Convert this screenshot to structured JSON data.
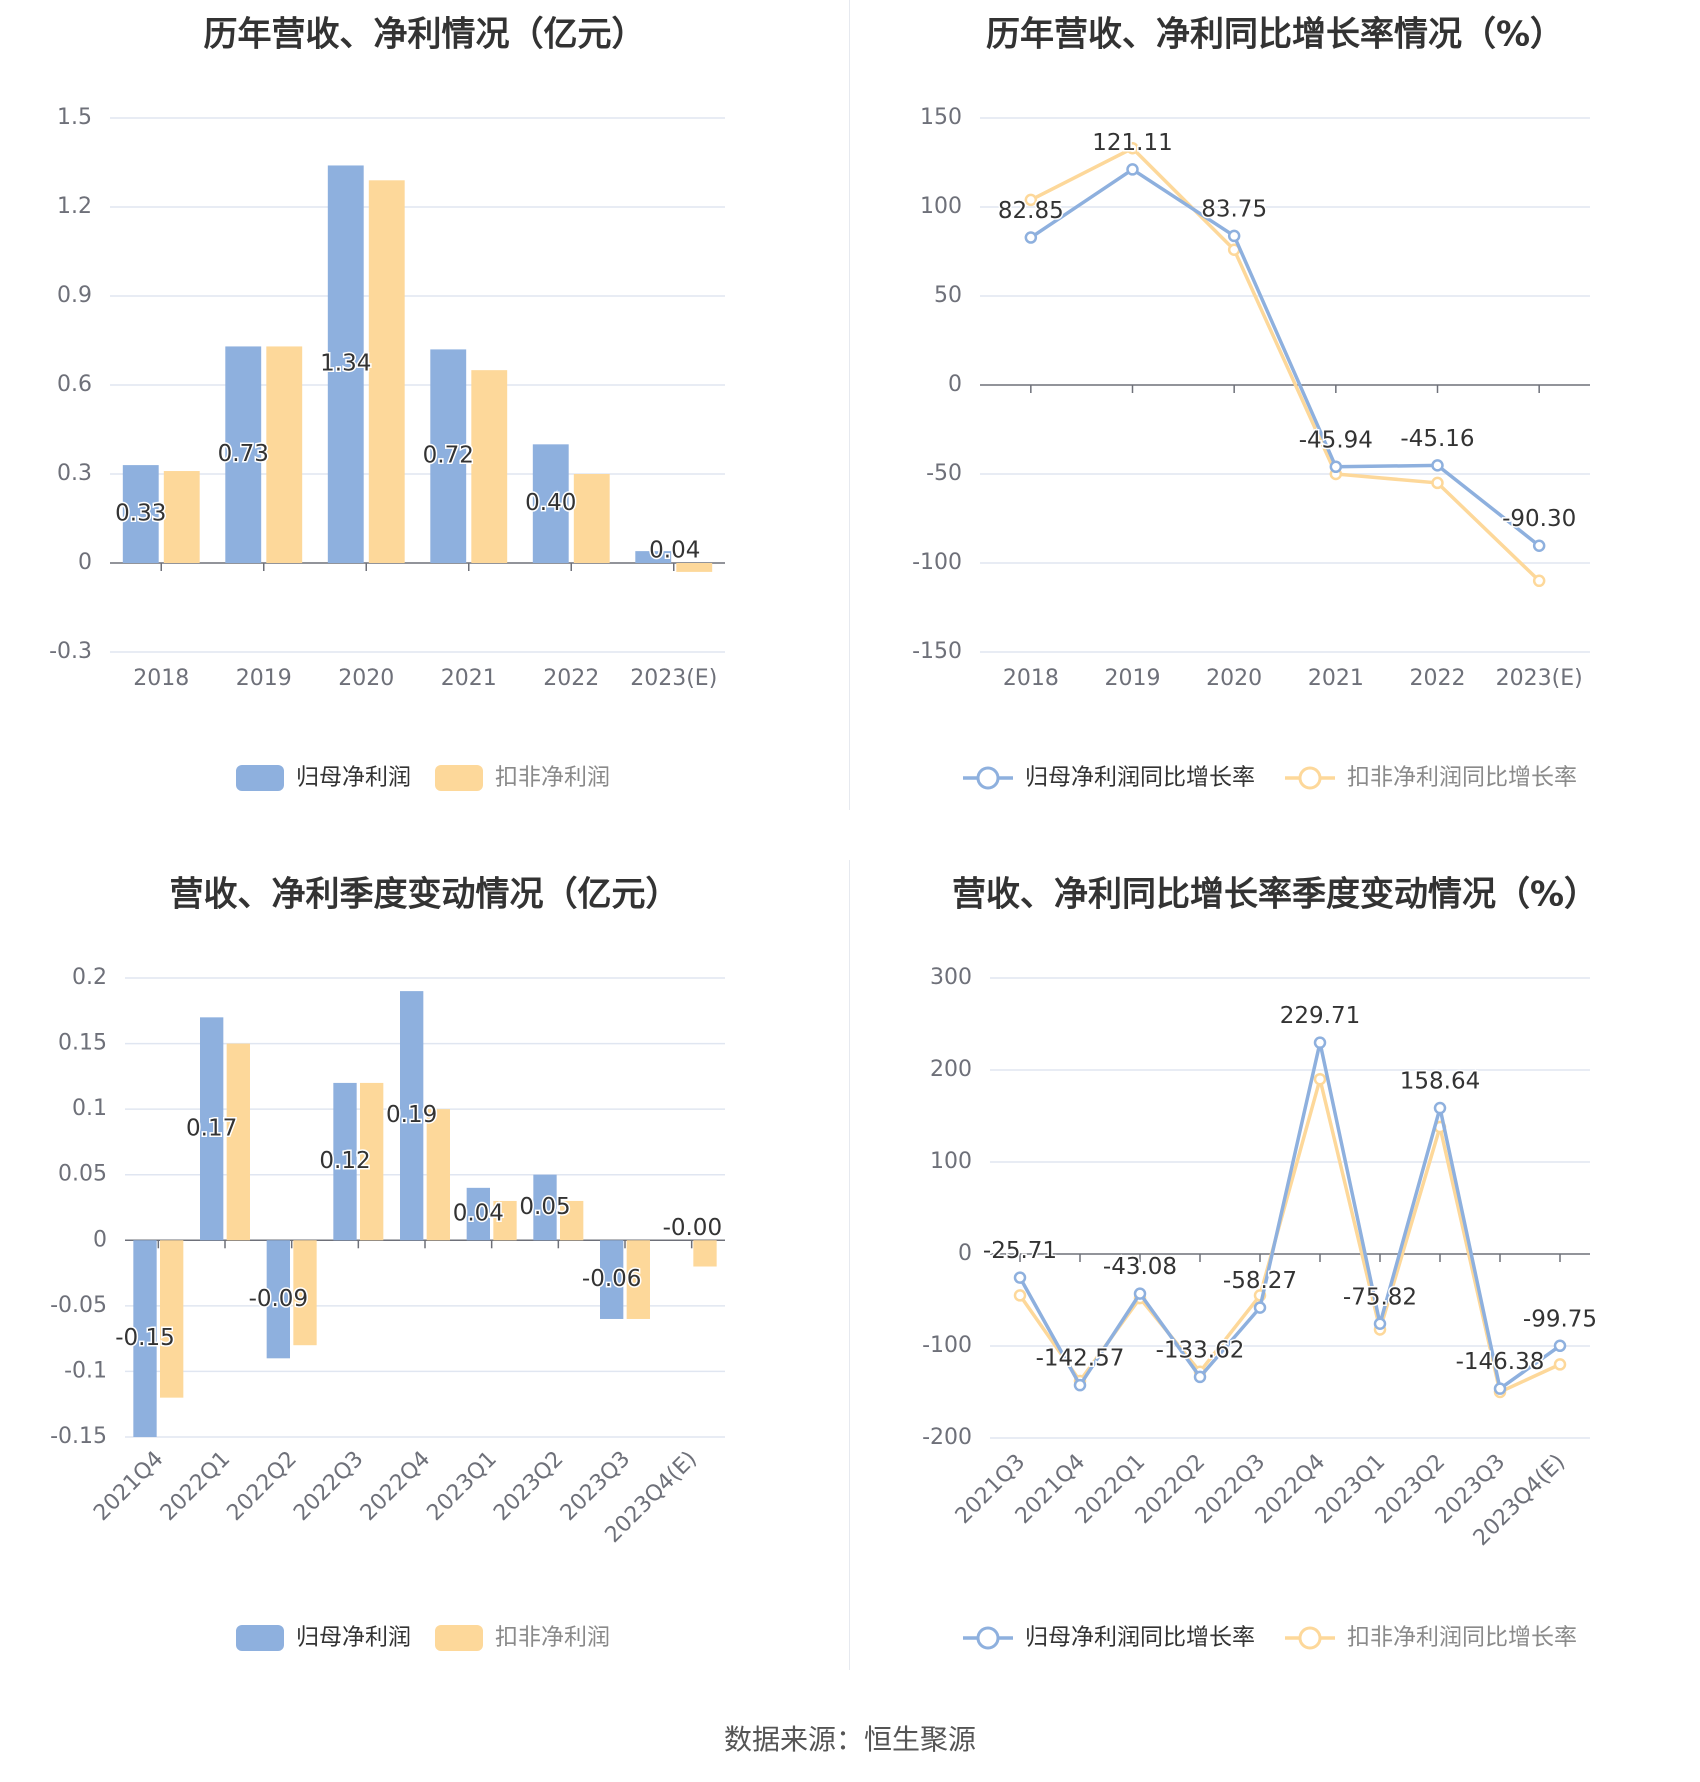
{
  "footer": "数据来源：恒生聚源",
  "colors": {
    "blue": "#8eb0de",
    "yellow": "#fdd89a",
    "grid": "#e0e6f1",
    "axis": "#6e7079"
  },
  "chart_data": [
    {
      "type": "bar",
      "title": "历年营收、净利情况（亿元）",
      "categories": [
        "2018",
        "2019",
        "2020",
        "2021",
        "2022",
        "2023(E)"
      ],
      "ylim": [
        -0.3,
        1.5
      ],
      "yticks": [
        "-0.3",
        "0",
        "0.3",
        "0.6",
        "0.9",
        "1.2",
        "1.5"
      ],
      "series": [
        {
          "name": "归母净利润",
          "values": [
            0.33,
            0.73,
            1.34,
            0.72,
            0.4,
            0.04
          ],
          "labels": [
            "0.33",
            "0.73",
            "1.34",
            "0.72",
            "0.40",
            "0.04"
          ]
        },
        {
          "name": "扣非净利润",
          "values": [
            0.31,
            0.73,
            1.29,
            0.65,
            0.3,
            -0.03
          ]
        }
      ],
      "legend": "bottom-center"
    },
    {
      "type": "line",
      "title": "历年营收、净利同比增长率情况（%）",
      "categories": [
        "2018",
        "2019",
        "2020",
        "2021",
        "2022",
        "2023(E)"
      ],
      "ylim": [
        -150,
        150
      ],
      "yticks": [
        "-150",
        "-100",
        "-50",
        "0",
        "50",
        "100",
        "150"
      ],
      "series": [
        {
          "name": "归母净利润同比增长率",
          "values": [
            82.85,
            121.11,
            83.75,
            -45.94,
            -45.16,
            -90.3
          ],
          "labels": [
            "82.85",
            "121.11",
            "83.75",
            "-45.94",
            "-45.16",
            "-90.30"
          ]
        },
        {
          "name": "扣非净利润同比增长率",
          "values": [
            104,
            133,
            76,
            -50,
            -55,
            -110
          ]
        }
      ],
      "legend": "bottom-center"
    },
    {
      "type": "bar",
      "title": "营收、净利季度变动情况（亿元）",
      "categories": [
        "2021Q4",
        "2022Q1",
        "2022Q2",
        "2022Q3",
        "2022Q4",
        "2023Q1",
        "2023Q2",
        "2023Q3",
        "2023Q4(E)"
      ],
      "ylim": [
        -0.15,
        0.2
      ],
      "yticks": [
        "-0.15",
        "-0.1",
        "-0.05",
        "0",
        "0.05",
        "0.1",
        "0.15",
        "0.2"
      ],
      "series": [
        {
          "name": "归母净利润",
          "values": [
            -0.15,
            0.17,
            -0.09,
            0.12,
            0.19,
            0.04,
            0.05,
            -0.06,
            0.0
          ],
          "labels": [
            "-0.15",
            "0.17",
            "-0.09",
            "0.12",
            "0.19",
            "0.04",
            "0.05",
            "-0.06",
            "-0.00"
          ]
        },
        {
          "name": "扣非净利润",
          "values": [
            -0.12,
            0.15,
            -0.08,
            0.12,
            0.1,
            0.03,
            0.03,
            -0.06,
            -0.02
          ]
        }
      ],
      "legend": "bottom-center"
    },
    {
      "type": "line",
      "title": "营收、净利同比增长率季度变动情况（%）",
      "categories": [
        "2021Q3",
        "2021Q4",
        "2022Q1",
        "2022Q2",
        "2022Q3",
        "2022Q4",
        "2023Q1",
        "2023Q2",
        "2023Q3",
        "2023Q4(E)"
      ],
      "ylim": [
        -200,
        300
      ],
      "yticks": [
        "-200",
        "-100",
        "0",
        "100",
        "200",
        "300"
      ],
      "series": [
        {
          "name": "归母净利润同比增长率",
          "values": [
            -25.71,
            -142.57,
            -43.08,
            -133.62,
            -58.27,
            229.71,
            -75.82,
            158.64,
            -146.38,
            -99.75
          ],
          "labels": [
            "-25.71",
            "-142.57",
            "-43.08",
            "-133.62",
            "-58.27",
            "229.71",
            "-75.82",
            "158.64",
            "-146.38",
            "-99.75"
          ]
        },
        {
          "name": "扣非净利润同比增长率",
          "values": [
            -45,
            -138,
            -48,
            -128,
            -45,
            190,
            -82,
            138,
            -150,
            -120
          ]
        }
      ],
      "legend": "bottom-center"
    }
  ]
}
